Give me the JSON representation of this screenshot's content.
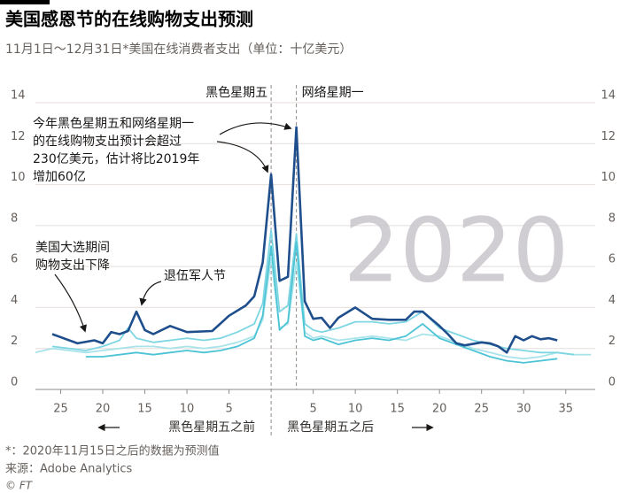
{
  "chart_data": {
    "type": "line",
    "title": "美国感恩节的在线购物支出预测",
    "subtitle": "11月1日～12月31日*美国在线消费者支出（单位：十亿美元）",
    "xlim": [
      -28,
      38.5
    ],
    "ylim": [
      0,
      14
    ],
    "xticks": [
      {
        "value": -25,
        "label": "25"
      },
      {
        "value": -20,
        "label": "20"
      },
      {
        "value": -15,
        "label": "15"
      },
      {
        "value": -10,
        "label": "10"
      },
      {
        "value": -5,
        "label": "5"
      },
      5,
      10,
      15,
      20,
      25,
      30,
      35
    ],
    "yticks": [
      0,
      2,
      4,
      6,
      8,
      10,
      12,
      14
    ],
    "grid": true,
    "series": [
      {
        "color": "#a9e3ea",
        "x": [
          -28,
          -26,
          -24,
          -22,
          -20,
          -18,
          -16,
          -14,
          -12,
          -10,
          -8,
          -6,
          -4,
          -2,
          -1,
          0,
          1,
          2,
          3,
          4,
          5,
          6,
          8,
          10,
          12,
          14,
          16,
          18,
          20,
          22,
          24,
          26,
          28,
          30,
          32,
          34,
          36,
          38
        ],
        "values": [
          1.8,
          2.0,
          1.9,
          1.8,
          1.9,
          2.0,
          2.1,
          2.1,
          2.0,
          2.1,
          2.0,
          2.1,
          2.3,
          2.6,
          3.4,
          6.4,
          3.0,
          3.2,
          6.2,
          2.8,
          2.5,
          2.6,
          2.4,
          2.5,
          2.6,
          2.5,
          2.4,
          2.7,
          2.6,
          2.3,
          2.0,
          1.8,
          1.6,
          1.5,
          1.6,
          1.8,
          1.7,
          1.7
        ]
      },
      {
        "color": "#7ed6e2",
        "x": [
          -26,
          -24,
          -22,
          -20,
          -18,
          -17,
          -16,
          -14,
          -12,
          -10,
          -8,
          -6,
          -4,
          -2,
          -1,
          0,
          1,
          2,
          3,
          4,
          5,
          6,
          8,
          10,
          12,
          14,
          16,
          18,
          20,
          22,
          24,
          26,
          28,
          30,
          32,
          34,
          36
        ],
        "values": [
          2.1,
          2.0,
          1.9,
          2.1,
          2.4,
          3.0,
          2.5,
          2.3,
          2.4,
          2.5,
          2.4,
          2.5,
          2.8,
          3.2,
          4.2,
          7.8,
          3.8,
          4.1,
          7.6,
          3.2,
          2.9,
          2.8,
          3.0,
          3.3,
          3.3,
          3.2,
          3.3,
          3.8,
          3.0,
          2.7,
          2.4,
          2.2,
          2.0,
          1.9,
          1.8,
          1.8,
          1.7
        ]
      },
      {
        "color": "#4cc4d6",
        "x": [
          -22,
          -20,
          -18,
          -16,
          -14,
          -12,
          -10,
          -8,
          -6,
          -4,
          -2,
          -1,
          0,
          1,
          2,
          3,
          4,
          5,
          6,
          8,
          10,
          12,
          14,
          16,
          18,
          20,
          22,
          24,
          26,
          28,
          30,
          32,
          34
        ],
        "values": [
          1.6,
          1.6,
          1.7,
          1.8,
          1.7,
          1.8,
          1.9,
          1.8,
          1.9,
          2.1,
          2.5,
          3.6,
          7.0,
          2.9,
          3.3,
          7.2,
          2.6,
          2.4,
          2.5,
          2.2,
          2.4,
          2.5,
          2.4,
          2.6,
          3.2,
          2.5,
          2.2,
          1.9,
          1.6,
          1.4,
          1.3,
          1.4,
          1.5
        ]
      },
      {
        "color": "#1f4e8c",
        "x": [
          -26,
          -23,
          -21,
          -20,
          -19,
          -18,
          -17,
          -16,
          -15,
          -14,
          -12,
          -10,
          -7,
          -5,
          -3,
          -2,
          -1,
          0,
          1,
          2,
          3,
          4,
          5,
          6,
          7,
          8,
          10,
          12,
          14,
          16,
          17,
          18,
          19,
          20,
          21,
          22,
          23,
          25,
          26,
          27,
          28,
          29,
          30,
          31,
          32,
          33,
          34
        ],
        "values": [
          2.7,
          2.25,
          2.4,
          2.25,
          2.8,
          2.7,
          2.85,
          3.8,
          2.9,
          2.7,
          3.1,
          2.8,
          2.85,
          3.6,
          4.1,
          4.55,
          6.2,
          10.5,
          5.3,
          5.5,
          12.8,
          4.3,
          3.45,
          3.5,
          3.0,
          3.5,
          4.0,
          3.45,
          3.4,
          3.4,
          3.8,
          3.8,
          3.45,
          3.1,
          2.7,
          2.25,
          2.15,
          2.3,
          2.25,
          2.1,
          1.8,
          2.6,
          2.4,
          2.6,
          2.45,
          2.5,
          2.4
        ]
      }
    ],
    "watermark": "2020",
    "black_friday": {
      "x": 0,
      "label": "黑色星期五"
    },
    "cyber_monday": {
      "x": 3,
      "label": "网络星期一"
    },
    "annotations": {
      "peak": [
        "今年黑色星期五和网络星期一",
        "的在线购物支出预计会超过",
        "230亿美元，估计将比2019年",
        "增加60亿"
      ],
      "election": [
        "美国大选期间",
        "购物支出下降"
      ],
      "veterans": "退伍军人节"
    },
    "before_label": "黑色星期五之前",
    "after_label": "黑色星期五之后",
    "note": "*：2020年11月15日之后的数据为预测值",
    "source": "来源：Adobe Analytics",
    "credit": "© FT"
  }
}
